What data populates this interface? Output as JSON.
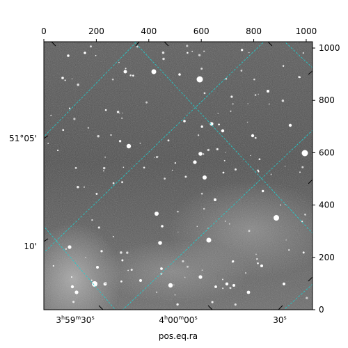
{
  "chart_data": {
    "type": "image",
    "title": "",
    "xlabel": "pos.eq.ra",
    "ylabel": "",
    "pixel_axes": {
      "x_ticks": [
        0,
        200,
        400,
        600,
        800,
        1000
      ],
      "y_ticks": [
        0,
        200,
        400,
        600,
        800,
        1000
      ],
      "xlim": [
        0,
        1024
      ],
      "ylim": [
        0,
        1024
      ]
    },
    "world_axes": {
      "ra_tick_labels": [
        {
          "base": "3",
          "h": "h",
          "mid": "59",
          "m": "m",
          "sec": "30",
          "s": "s"
        },
        {
          "base": "4",
          "h": "h",
          "mid": "00",
          "m": "m",
          "sec": "00",
          "s": "s"
        },
        {
          "base": "30",
          "s": "s"
        }
      ],
      "dec_tick_labels": [
        "51°05'",
        "10'"
      ]
    },
    "grid": true,
    "grid_color": "#22cccc",
    "image_colormap": "gray"
  }
}
